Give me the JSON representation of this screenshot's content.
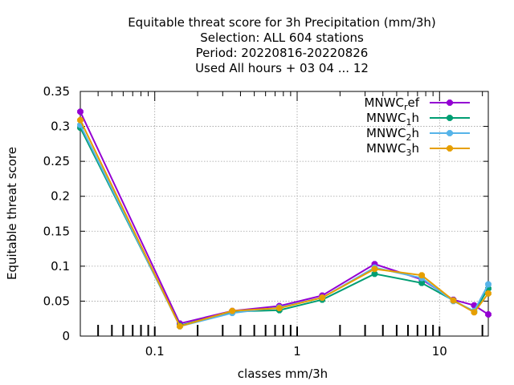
{
  "chart_data": {
    "type": "line",
    "title_lines": [
      "Equitable threat score  for 3h Precipitation (mm/3h)",
      "Selection: ALL    604 stations",
      "Period: 20220816-20220826",
      "Used  All hours + 03 04 ... 12"
    ],
    "xlabel": "classes mm/3h",
    "ylabel": "Equitable threat score",
    "x_scale": "log",
    "xlim": [
      0.03,
      22
    ],
    "ylim": [
      0,
      0.35
    ],
    "grid": true,
    "legend_position": "top-right",
    "x_ticks": [
      {
        "value": 0.1,
        "label": "0.1"
      },
      {
        "value": 1,
        "label": "1"
      },
      {
        "value": 10,
        "label": "10"
      }
    ],
    "y_ticks": [
      {
        "value": 0,
        "label": "0"
      },
      {
        "value": 0.05,
        "label": "0.05"
      },
      {
        "value": 0.1,
        "label": "0.1"
      },
      {
        "value": 0.15,
        "label": "0.15"
      },
      {
        "value": 0.2,
        "label": "0.2"
      },
      {
        "value": 0.25,
        "label": "0.25"
      },
      {
        "value": 0.3,
        "label": "0.3"
      },
      {
        "value": 0.35,
        "label": "0.35"
      }
    ],
    "x": [
      0.03,
      0.15,
      0.35,
      0.75,
      1.5,
      3.5,
      7.5,
      12.5,
      17.5,
      22
    ],
    "series": [
      {
        "name": "MNWC",
        "sub": "r",
        "suffix": "ef",
        "color": "#9400d3",
        "values": [
          0.321,
          0.018,
          0.036,
          0.043,
          0.058,
          0.103,
          0.081,
          0.052,
          0.044,
          0.031
        ]
      },
      {
        "name": "MNWC",
        "sub": "1",
        "suffix": "h",
        "color": "#009e73",
        "values": [
          0.298,
          0.015,
          0.035,
          0.037,
          0.052,
          0.089,
          0.076,
          0.051,
          0.035,
          0.068
        ]
      },
      {
        "name": "MNWC",
        "sub": "2",
        "suffix": "h",
        "color": "#56b4e9",
        "values": [
          0.302,
          0.014,
          0.033,
          0.041,
          0.055,
          0.098,
          0.083,
          0.05,
          0.036,
          0.074
        ]
      },
      {
        "name": "MNWC",
        "sub": "3",
        "suffix": "h",
        "color": "#e69f00",
        "values": [
          0.309,
          0.014,
          0.036,
          0.04,
          0.055,
          0.096,
          0.087,
          0.051,
          0.034,
          0.061
        ]
      }
    ]
  }
}
